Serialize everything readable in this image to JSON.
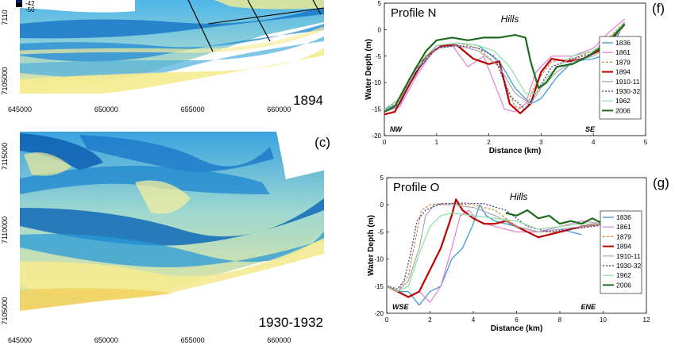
{
  "maps": [
    {
      "year_label": "1894",
      "x_ticks": [
        "645000",
        "650000",
        "655000",
        "660000"
      ],
      "x_tick_values": [
        645000,
        650000,
        655000,
        660000
      ],
      "y_ticks": [
        "7110",
        "7105000"
      ],
      "legend_values": [
        "-42",
        "-50"
      ]
    },
    {
      "panel_letter": "(c)",
      "year_label": "1930-1932",
      "x_ticks": [
        "645000",
        "650000",
        "655000",
        "660000"
      ],
      "x_tick_values": [
        645000,
        650000,
        655000,
        660000
      ],
      "y_ticks": [
        "7115000",
        "7110000",
        "7105000"
      ]
    }
  ],
  "chart_data": [
    {
      "type": "line",
      "panel_letter": "(f)",
      "title": "Profile N",
      "annotation": "Hills",
      "xlabel": "Distance (km)",
      "ylabel": "Water Depth (m)",
      "xlim": [
        0,
        5
      ],
      "ylim": [
        -20,
        5
      ],
      "x_ticks": [
        0,
        1,
        2,
        3,
        4,
        5
      ],
      "y_ticks": [
        5,
        0,
        -5,
        -10,
        -15,
        -20
      ],
      "corner_left": "NW",
      "corner_right": "SE",
      "legend_position": "right",
      "series": [
        {
          "name": "1836",
          "color": "#3a9bd9",
          "dash": "",
          "width": 1.3,
          "x": [
            0,
            0.3,
            0.6,
            1.0,
            1.4,
            1.8,
            2.2,
            2.5,
            2.8,
            3.0,
            3.3,
            3.6,
            4.0,
            4.3,
            4.6
          ],
          "y": [
            -15,
            -14,
            -8,
            -3.5,
            -2.5,
            -3,
            -6,
            -11,
            -14,
            -13,
            -9,
            -6,
            -5.5,
            -4.5,
            1.5
          ]
        },
        {
          "name": "1861",
          "color": "#e07ed8",
          "dash": "",
          "width": 1.2,
          "x": [
            0,
            0.3,
            0.6,
            1.0,
            1.3,
            1.6,
            1.9,
            2.1,
            2.3,
            2.5,
            2.7,
            2.9,
            3.2,
            3.6,
            4.0,
            4.3,
            4.6
          ],
          "y": [
            -15.5,
            -14.5,
            -9,
            -3,
            -3,
            -7,
            -5,
            -10,
            -15,
            -15.5,
            -14,
            -8,
            -5,
            -5,
            -3.5,
            -0.5,
            2
          ]
        },
        {
          "name": "1879",
          "color": "#c98a3a",
          "dash": "3,2",
          "width": 1.2,
          "x": [
            0,
            0.3,
            0.6,
            1.0,
            1.4,
            1.8,
            2.2,
            2.5,
            2.7,
            2.9,
            3.2,
            3.6,
            4.0,
            4.3,
            4.6
          ],
          "y": [
            -15,
            -13.5,
            -7,
            -3,
            -2.5,
            -3.5,
            -7,
            -14.5,
            -15,
            -10,
            -6,
            -5.5,
            -4,
            -1.5,
            1.5
          ]
        },
        {
          "name": "1894",
          "color": "#c00000",
          "dash": "",
          "width": 2.2,
          "x": [
            0,
            0.2,
            0.5,
            0.8,
            1.1,
            1.4,
            1.7,
            2.0,
            2.2,
            2.4,
            2.6,
            2.8,
            3.0,
            3.2,
            3.5,
            3.8,
            4.1,
            4.3,
            4.6
          ],
          "y": [
            -16,
            -15.5,
            -10,
            -5,
            -3,
            -3,
            -5.5,
            -6.5,
            -6,
            -14,
            -15.8,
            -14,
            -8,
            -5.5,
            -6,
            -5.5,
            -4,
            -2.5,
            1
          ]
        },
        {
          "name": "1910-11",
          "color": "#a9a9a9",
          "dash": "",
          "width": 1.2,
          "x": [
            0,
            0.3,
            0.6,
            1.0,
            1.4,
            1.8,
            2.2,
            2.5,
            2.8,
            3.0,
            3.3,
            3.6,
            4.0,
            4.3,
            4.6
          ],
          "y": [
            -15,
            -13,
            -7.5,
            -3.5,
            -3,
            -4,
            -7,
            -12,
            -14,
            -11,
            -8,
            -6,
            -5,
            -3,
            1
          ]
        },
        {
          "name": "1930-32",
          "color": "#4b2a8a",
          "dash": "2,2",
          "width": 1.2,
          "x": [
            0,
            0.3,
            0.6,
            1.0,
            1.4,
            1.8,
            2.1,
            2.4,
            2.7,
            2.9,
            3.2,
            3.6,
            4.0,
            4.3,
            4.6
          ],
          "y": [
            -15.5,
            -14,
            -8,
            -3.5,
            -3,
            -3.5,
            -5,
            -12.5,
            -15,
            -12,
            -7,
            -5.5,
            -4.5,
            -2,
            1.5
          ]
        },
        {
          "name": "1962",
          "color": "#8be0a0",
          "dash": "",
          "width": 1.2,
          "x": [
            0,
            0.3,
            0.6,
            1.0,
            1.4,
            1.8,
            2.1,
            2.4,
            2.7,
            2.9,
            3.2,
            3.6,
            4.0,
            4.3,
            4.6
          ],
          "y": [
            -15,
            -13,
            -7,
            -3,
            -2.5,
            -3,
            -4,
            -7,
            -12,
            -12,
            -8,
            -5,
            -4,
            -2,
            1.5
          ]
        },
        {
          "name": "2006",
          "color": "#1e6b1e",
          "dash": "",
          "width": 2.2,
          "x": [
            0,
            0.2,
            0.5,
            0.8,
            1.0,
            1.3,
            1.6,
            1.9,
            2.2,
            2.5,
            2.7,
            2.8,
            2.95,
            3.1,
            3.3,
            3.6,
            3.9,
            4.2,
            4.6
          ],
          "y": [
            -15.5,
            -14.5,
            -9,
            -4,
            -2,
            -1.5,
            -2,
            -1.5,
            -1.5,
            -1,
            -1.5,
            -6,
            -11,
            -10,
            -7,
            -6.5,
            -5,
            -3,
            1
          ]
        }
      ]
    },
    {
      "type": "line",
      "panel_letter": "(g)",
      "title": "Profile O",
      "annotation": "Hills",
      "xlabel": "Distance (km)",
      "ylabel": "Water Depth (m)",
      "xlim": [
        0,
        12
      ],
      "ylim": [
        -20,
        5
      ],
      "x_ticks": [
        0,
        2,
        4,
        6,
        8,
        10,
        12
      ],
      "y_ticks": [
        5,
        0,
        -5,
        -10,
        -15,
        -20
      ],
      "corner_left": "WSE",
      "corner_right": "ENE",
      "legend_position": "right",
      "series": [
        {
          "name": "1836",
          "color": "#3a9bd9",
          "dash": "",
          "width": 1.3,
          "x": [
            0,
            0.5,
            1.0,
            1.5,
            2.0,
            2.5,
            3.0,
            3.5,
            4.0,
            4.3,
            4.6,
            5.0,
            6.0,
            7.0,
            8.0,
            9.0
          ],
          "y": [
            -15,
            -16,
            -16,
            -18.5,
            -16,
            -15,
            -10,
            -8,
            -3.5,
            0,
            -2,
            -3,
            -4,
            -5,
            -4.5,
            -5.5
          ]
        },
        {
          "name": "1861",
          "color": "#e07ed8",
          "dash": "",
          "width": 1.2,
          "x": [
            0,
            0.5,
            1.0,
            1.5,
            2.0,
            2.5,
            3.0,
            3.4,
            3.8,
            4.2,
            5.0,
            6.0,
            7.0,
            8.0,
            9.0,
            10.0,
            11.0
          ],
          "y": [
            -15,
            -16,
            -17,
            -16,
            -18,
            -15,
            -8,
            -2,
            -1,
            -3,
            -4,
            -5,
            -5,
            -4,
            -3,
            -3.5,
            -3
          ]
        },
        {
          "name": "1879",
          "color": "#c98a3a",
          "dash": "3,2",
          "width": 1.2,
          "x": [
            0,
            0.5,
            1.0,
            1.3,
            1.6,
            2.0,
            2.4,
            3.0,
            4.0,
            5.0,
            6.0,
            7.0,
            8.0,
            9.0,
            10.0,
            11.0
          ],
          "y": [
            -15,
            -16,
            -13,
            -7,
            -1,
            0,
            0.2,
            0.2,
            0,
            -1,
            -4,
            -5,
            -5,
            -4,
            -3.5,
            -3
          ]
        },
        {
          "name": "1894",
          "color": "#c00000",
          "dash": "",
          "width": 2.2,
          "x": [
            0,
            0.5,
            1.0,
            1.5,
            2.0,
            2.5,
            3.0,
            3.2,
            3.5,
            4.0,
            4.5,
            5.0,
            5.5,
            6.0,
            6.5,
            7.0,
            8.0,
            9.0,
            10.0,
            11.0
          ],
          "y": [
            -15,
            -16,
            -17,
            -16,
            -12,
            -8,
            -2,
            1,
            -1,
            -2.5,
            -3.5,
            -3.5,
            -3,
            -4,
            -5,
            -6,
            -5,
            -4,
            -3.5,
            -3
          ]
        },
        {
          "name": "1910-11",
          "color": "#a9a9a9",
          "dash": "",
          "width": 1.2,
          "x": [
            0,
            0.5,
            1.0,
            1.5,
            1.8,
            2.2,
            3.0,
            4.0,
            5.0,
            6.0,
            7.0,
            8.0,
            9.0,
            10.0,
            11.0
          ],
          "y": [
            -15,
            -16,
            -14,
            -8,
            -2,
            0,
            0,
            -0.5,
            -2,
            -4,
            -5,
            -4.5,
            -4,
            -3.5,
            -3
          ]
        },
        {
          "name": "1930-32",
          "color": "#4b2a8a",
          "dash": "2,2",
          "width": 1.2,
          "x": [
            0,
            0.5,
            0.8,
            1.1,
            1.4,
            1.8,
            2.5,
            3.5,
            4.5,
            5.5,
            6.5,
            7.5,
            8.5,
            9.5,
            10.5,
            11.0
          ],
          "y": [
            -15,
            -15.5,
            -14,
            -9,
            -3,
            -1,
            0.2,
            0.3,
            0.2,
            -1,
            -4,
            -5,
            -4.5,
            -4,
            -3.5,
            -3
          ]
        },
        {
          "name": "1962",
          "color": "#8be0a0",
          "dash": "",
          "width": 1.2,
          "x": [
            0,
            0.5,
            1.0,
            1.5,
            2.0,
            2.5,
            3.0,
            4.0,
            5.0,
            6.0,
            7.0,
            8.0,
            9.0,
            10.0,
            11.0
          ],
          "y": [
            -15,
            -16,
            -15,
            -9,
            -4,
            -2,
            -1.5,
            -2,
            -2.5,
            -3,
            -4.5,
            -4,
            -3.5,
            -3.5,
            -3
          ]
        },
        {
          "name": "2006",
          "color": "#1e6b1e",
          "dash": "",
          "width": 2.2,
          "x": [
            5.5,
            6.0,
            6.5,
            7.0,
            7.5,
            8.0,
            8.5,
            9.0,
            9.5,
            10.0,
            10.5,
            10.9
          ],
          "y": [
            -1.5,
            -2,
            -1,
            -2.5,
            -2,
            -3.5,
            -3,
            -3.5,
            -2.5,
            -3.5,
            -3,
            -3.5
          ]
        }
      ]
    }
  ]
}
